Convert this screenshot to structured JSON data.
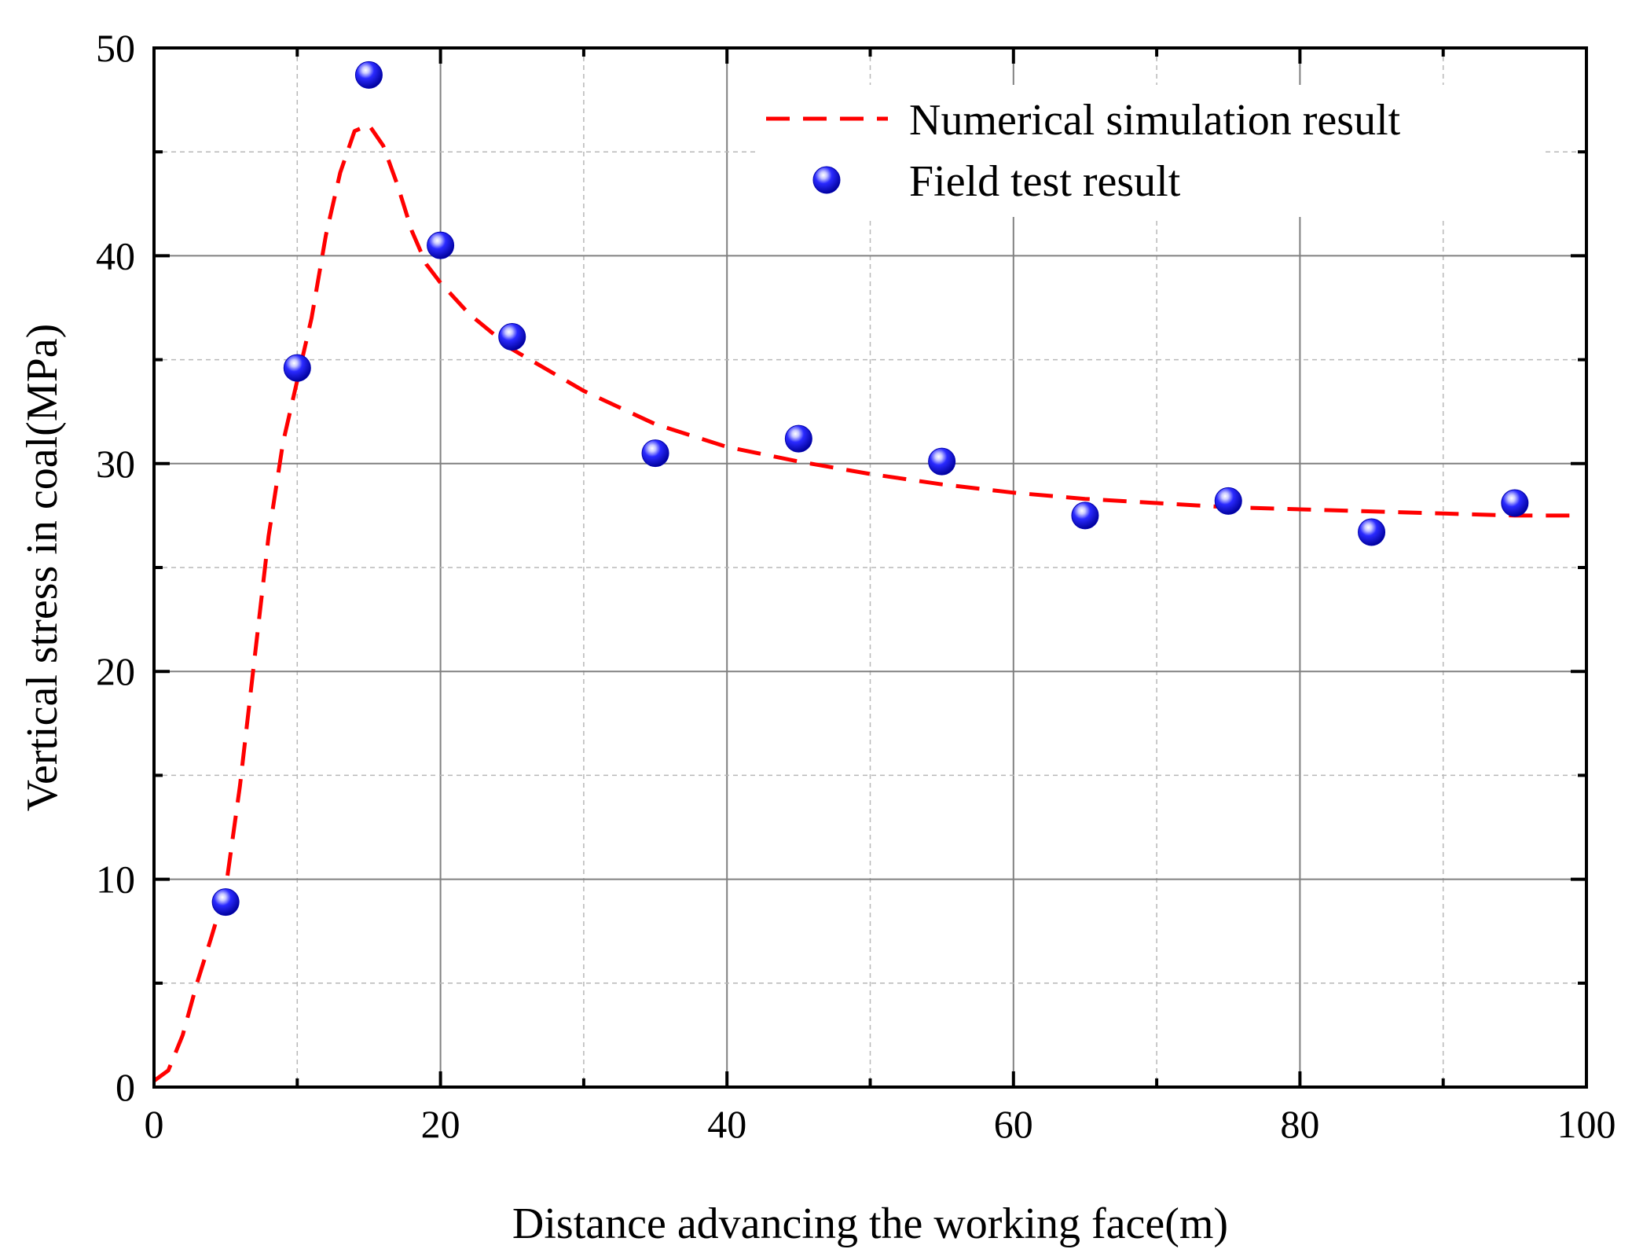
{
  "chart_data": {
    "type": "line+scatter",
    "xlabel": "Distance advancing the working face(m)",
    "ylabel": "Vertical stress in coal(MPa)",
    "xlim": [
      0,
      100
    ],
    "ylim": [
      0,
      50
    ],
    "x_ticks": [
      0,
      20,
      40,
      60,
      80,
      100
    ],
    "x_tick_labels": [
      "0",
      "20",
      "40",
      "60",
      "80",
      "100"
    ],
    "y_ticks": [
      0,
      10,
      20,
      30,
      40,
      50
    ],
    "y_tick_labels": [
      "0",
      "10",
      "20",
      "30",
      "40",
      "50"
    ],
    "x_minor_step": 10,
    "y_minor_step": 5,
    "grid": true,
    "legend_position": "top-right",
    "series": [
      {
        "name": "Numerical simulation result",
        "kind": "line",
        "style": "dashed",
        "color": "#ff0000",
        "x": [
          0,
          1,
          2,
          3,
          4,
          5,
          6,
          7,
          8,
          9,
          10,
          11,
          12,
          13,
          14,
          15,
          16,
          17,
          18,
          19,
          20,
          22,
          25,
          28,
          30,
          35,
          40,
          45,
          50,
          55,
          60,
          65,
          70,
          75,
          80,
          85,
          90,
          95,
          99
        ],
        "y": [
          0.3,
          0.8,
          2.5,
          5.0,
          7.2,
          9.5,
          14.5,
          20.5,
          26.5,
          31.0,
          34.0,
          37.0,
          41.0,
          44.0,
          46.0,
          46.3,
          45.3,
          43.4,
          41.2,
          39.6,
          38.7,
          37.2,
          35.5,
          34.3,
          33.5,
          31.9,
          30.8,
          30.1,
          29.5,
          29.0,
          28.6,
          28.3,
          28.1,
          27.9,
          27.8,
          27.7,
          27.6,
          27.5,
          27.5
        ]
      },
      {
        "name": "Field test result",
        "kind": "scatter",
        "color": "#1a1aff",
        "x": [
          5,
          10,
          15,
          20,
          25,
          35,
          45,
          55,
          65,
          75,
          85,
          95
        ],
        "y": [
          8.9,
          34.6,
          48.7,
          40.5,
          36.1,
          30.5,
          31.2,
          30.1,
          27.5,
          28.2,
          26.7,
          28.1
        ]
      }
    ]
  }
}
